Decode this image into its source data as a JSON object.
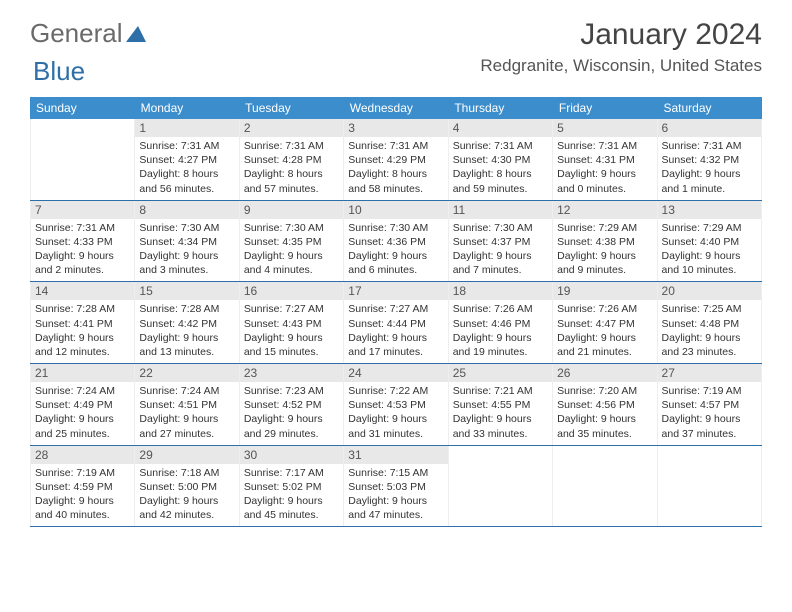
{
  "logo": {
    "word1": "General",
    "word2": "Blue"
  },
  "title": "January 2024",
  "location": "Redgranite, Wisconsin, United States",
  "colors": {
    "header_bg": "#3c8dcc",
    "header_text": "#ffffff",
    "rule": "#2f6fa8",
    "daynum_bg": "#e8e8e8",
    "text": "#333333",
    "title_text": "#444444"
  },
  "day_labels": [
    "Sunday",
    "Monday",
    "Tuesday",
    "Wednesday",
    "Thursday",
    "Friday",
    "Saturday"
  ],
  "layout": {
    "first_weekday": "Sunday",
    "weeks": 5,
    "blank_leading": 1,
    "days_in_month": 31
  },
  "days": {
    "1": {
      "sunrise": "7:31 AM",
      "sunset": "4:27 PM",
      "daylight": "8 hours and 56 minutes."
    },
    "2": {
      "sunrise": "7:31 AM",
      "sunset": "4:28 PM",
      "daylight": "8 hours and 57 minutes."
    },
    "3": {
      "sunrise": "7:31 AM",
      "sunset": "4:29 PM",
      "daylight": "8 hours and 58 minutes."
    },
    "4": {
      "sunrise": "7:31 AM",
      "sunset": "4:30 PM",
      "daylight": "8 hours and 59 minutes."
    },
    "5": {
      "sunrise": "7:31 AM",
      "sunset": "4:31 PM",
      "daylight": "9 hours and 0 minutes."
    },
    "6": {
      "sunrise": "7:31 AM",
      "sunset": "4:32 PM",
      "daylight": "9 hours and 1 minute."
    },
    "7": {
      "sunrise": "7:31 AM",
      "sunset": "4:33 PM",
      "daylight": "9 hours and 2 minutes."
    },
    "8": {
      "sunrise": "7:30 AM",
      "sunset": "4:34 PM",
      "daylight": "9 hours and 3 minutes."
    },
    "9": {
      "sunrise": "7:30 AM",
      "sunset": "4:35 PM",
      "daylight": "9 hours and 4 minutes."
    },
    "10": {
      "sunrise": "7:30 AM",
      "sunset": "4:36 PM",
      "daylight": "9 hours and 6 minutes."
    },
    "11": {
      "sunrise": "7:30 AM",
      "sunset": "4:37 PM",
      "daylight": "9 hours and 7 minutes."
    },
    "12": {
      "sunrise": "7:29 AM",
      "sunset": "4:38 PM",
      "daylight": "9 hours and 9 minutes."
    },
    "13": {
      "sunrise": "7:29 AM",
      "sunset": "4:40 PM",
      "daylight": "9 hours and 10 minutes."
    },
    "14": {
      "sunrise": "7:28 AM",
      "sunset": "4:41 PM",
      "daylight": "9 hours and 12 minutes."
    },
    "15": {
      "sunrise": "7:28 AM",
      "sunset": "4:42 PM",
      "daylight": "9 hours and 13 minutes."
    },
    "16": {
      "sunrise": "7:27 AM",
      "sunset": "4:43 PM",
      "daylight": "9 hours and 15 minutes."
    },
    "17": {
      "sunrise": "7:27 AM",
      "sunset": "4:44 PM",
      "daylight": "9 hours and 17 minutes."
    },
    "18": {
      "sunrise": "7:26 AM",
      "sunset": "4:46 PM",
      "daylight": "9 hours and 19 minutes."
    },
    "19": {
      "sunrise": "7:26 AM",
      "sunset": "4:47 PM",
      "daylight": "9 hours and 21 minutes."
    },
    "20": {
      "sunrise": "7:25 AM",
      "sunset": "4:48 PM",
      "daylight": "9 hours and 23 minutes."
    },
    "21": {
      "sunrise": "7:24 AM",
      "sunset": "4:49 PM",
      "daylight": "9 hours and 25 minutes."
    },
    "22": {
      "sunrise": "7:24 AM",
      "sunset": "4:51 PM",
      "daylight": "9 hours and 27 minutes."
    },
    "23": {
      "sunrise": "7:23 AM",
      "sunset": "4:52 PM",
      "daylight": "9 hours and 29 minutes."
    },
    "24": {
      "sunrise": "7:22 AM",
      "sunset": "4:53 PM",
      "daylight": "9 hours and 31 minutes."
    },
    "25": {
      "sunrise": "7:21 AM",
      "sunset": "4:55 PM",
      "daylight": "9 hours and 33 minutes."
    },
    "26": {
      "sunrise": "7:20 AM",
      "sunset": "4:56 PM",
      "daylight": "9 hours and 35 minutes."
    },
    "27": {
      "sunrise": "7:19 AM",
      "sunset": "4:57 PM",
      "daylight": "9 hours and 37 minutes."
    },
    "28": {
      "sunrise": "7:19 AM",
      "sunset": "4:59 PM",
      "daylight": "9 hours and 40 minutes."
    },
    "29": {
      "sunrise": "7:18 AM",
      "sunset": "5:00 PM",
      "daylight": "9 hours and 42 minutes."
    },
    "30": {
      "sunrise": "7:17 AM",
      "sunset": "5:02 PM",
      "daylight": "9 hours and 45 minutes."
    },
    "31": {
      "sunrise": "7:15 AM",
      "sunset": "5:03 PM",
      "daylight": "9 hours and 47 minutes."
    }
  },
  "field_labels": {
    "sunrise": "Sunrise: ",
    "sunset": "Sunset: ",
    "daylight": "Daylight: "
  }
}
